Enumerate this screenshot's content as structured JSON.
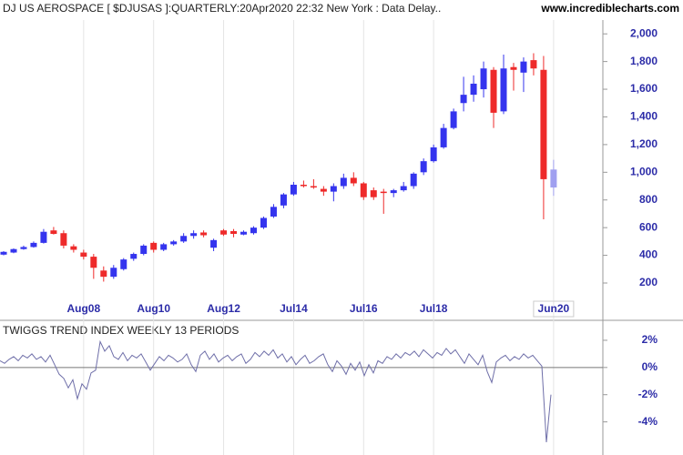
{
  "site": "www.incrediblecharts.com",
  "chart_data": [
    {
      "type": "candlestick",
      "title": "DJ US AEROSPACE [ $DJUSAS ]:QUARTERLY:20Apr2020 22:32 New York : Data Delay..",
      "categories": [
        null,
        null,
        null,
        null,
        null,
        null,
        null,
        null,
        "Aug08",
        null,
        null,
        null,
        null,
        null,
        null,
        "Aug10",
        null,
        null,
        null,
        null,
        null,
        null,
        "Aug12",
        null,
        null,
        null,
        null,
        null,
        null,
        "Jul14",
        null,
        null,
        null,
        null,
        null,
        null,
        "Jul16",
        null,
        null,
        null,
        null,
        null,
        null,
        "Jul18",
        null,
        null,
        null,
        null,
        null,
        null,
        null,
        null,
        null,
        null,
        null,
        "Jun20"
      ],
      "open": [
        405,
        420,
        445,
        460,
        490,
        580,
        560,
        465,
        420,
        390,
        290,
        245,
        300,
        375,
        410,
        490,
        440,
        480,
        500,
        540,
        565,
        455,
        580,
        575,
        550,
        560,
        600,
        680,
        760,
        840,
        910,
        900,
        880,
        860,
        900,
        960,
        920,
        870,
        860,
        850,
        870,
        900,
        1000,
        1080,
        1180,
        1320,
        1500,
        1560,
        1600,
        1740,
        1440,
        1760,
        1720,
        1810,
        1740,
        890
      ],
      "high": [
        430,
        450,
        470,
        500,
        590,
        605,
        580,
        480,
        440,
        410,
        320,
        330,
        380,
        420,
        480,
        500,
        490,
        510,
        560,
        580,
        580,
        520,
        590,
        590,
        580,
        610,
        680,
        770,
        850,
        930,
        940,
        950,
        900,
        920,
        990,
        1000,
        930,
        890,
        880,
        880,
        930,
        1000,
        1100,
        1200,
        1350,
        1460,
        1690,
        1700,
        1800,
        1760,
        1850,
        1790,
        1830,
        1860,
        1840,
        1090
      ],
      "low": [
        400,
        415,
        440,
        455,
        485,
        550,
        450,
        420,
        370,
        230,
        210,
        230,
        290,
        360,
        400,
        420,
        430,
        470,
        490,
        520,
        530,
        430,
        540,
        530,
        545,
        550,
        590,
        670,
        740,
        830,
        890,
        880,
        830,
        790,
        880,
        900,
        800,
        800,
        700,
        820,
        860,
        880,
        980,
        1070,
        1170,
        1310,
        1440,
        1510,
        1540,
        1320,
        1420,
        1590,
        1580,
        1700,
        660,
        830
      ],
      "close": [
        425,
        445,
        460,
        490,
        570,
        555,
        470,
        440,
        390,
        310,
        245,
        310,
        370,
        410,
        470,
        440,
        480,
        500,
        540,
        560,
        545,
        510,
        550,
        555,
        570,
        600,
        670,
        750,
        840,
        910,
        900,
        890,
        860,
        900,
        960,
        920,
        820,
        820,
        850,
        870,
        900,
        990,
        1080,
        1180,
        1320,
        1440,
        1560,
        1640,
        1750,
        1430,
        1750,
        1740,
        1800,
        1750,
        950,
        1020
      ],
      "up_color": "#3434ee",
      "down_color": "#ee2a2a",
      "current_color": "#a0a0f0",
      "ylim": [
        75,
        2100
      ],
      "yticks": [
        200,
        400,
        600,
        800,
        {
          "value": 1000,
          "label": "1,000"
        },
        {
          "value": 1200,
          "label": "1,200"
        },
        {
          "value": 1400,
          "label": "1,400"
        },
        {
          "value": 1600,
          "label": "1,600"
        },
        {
          "value": 1800,
          "label": "1,800"
        },
        {
          "value": 2000,
          "label": "2,000"
        }
      ]
    },
    {
      "type": "line",
      "title": "TWIGGS TREND INDEX WEEKLY 13 PERIODS",
      "color": "#6e6ea8",
      "values": [
        0.5,
        0.3,
        0.6,
        0.8,
        0.5,
        0.9,
        0.7,
        1.0,
        0.6,
        0.8,
        0.4,
        0.9,
        0.2,
        -0.5,
        -0.8,
        -1.5,
        -0.9,
        -2.3,
        -1.2,
        -1.6,
        -0.4,
        -0.2,
        1.9,
        1.2,
        1.6,
        0.8,
        0.6,
        1.1,
        0.5,
        0.9,
        0.7,
        1.0,
        0.4,
        -0.2,
        0.3,
        0.8,
        0.5,
        0.9,
        0.7,
        0.4,
        0.6,
        1.0,
        0.2,
        -0.3,
        0.9,
        1.2,
        0.6,
        1.0,
        0.4,
        0.7,
        0.9,
        0.5,
        0.8,
        1.0,
        0.3,
        0.6,
        1.1,
        0.8,
        1.2,
        0.9,
        1.3,
        0.7,
        1.0,
        0.4,
        0.8,
        0.2,
        0.6,
        0.9,
        0.3,
        0.5,
        0.8,
        1.0,
        0.2,
        -0.3,
        0.5,
        0.1,
        -0.5,
        0.3,
        -0.2,
        0.4,
        -0.6,
        0.2,
        -0.4,
        0.5,
        0.3,
        0.8,
        0.6,
        1.0,
        0.7,
        1.1,
        0.9,
        1.2,
        0.8,
        1.3,
        1.0,
        0.7,
        1.1,
        0.9,
        1.4,
        1.0,
        1.3,
        0.8,
        0.3,
        1.0,
        0.6,
        0.2,
        0.9,
        -0.3,
        -1.1,
        0.4,
        0.7,
        0.9,
        0.5,
        0.8,
        0.6,
        1.0,
        0.7,
        0.9,
        0.5,
        0.1,
        -5.5,
        -2.0
      ],
      "ylim": [
        -5.9,
        3.2
      ],
      "yticks": [
        {
          "value": -4,
          "label": "-4%"
        },
        {
          "value": -2,
          "label": "-2%"
        },
        {
          "value": 0,
          "label": "0%"
        },
        {
          "value": 2,
          "label": "2%"
        }
      ]
    }
  ]
}
